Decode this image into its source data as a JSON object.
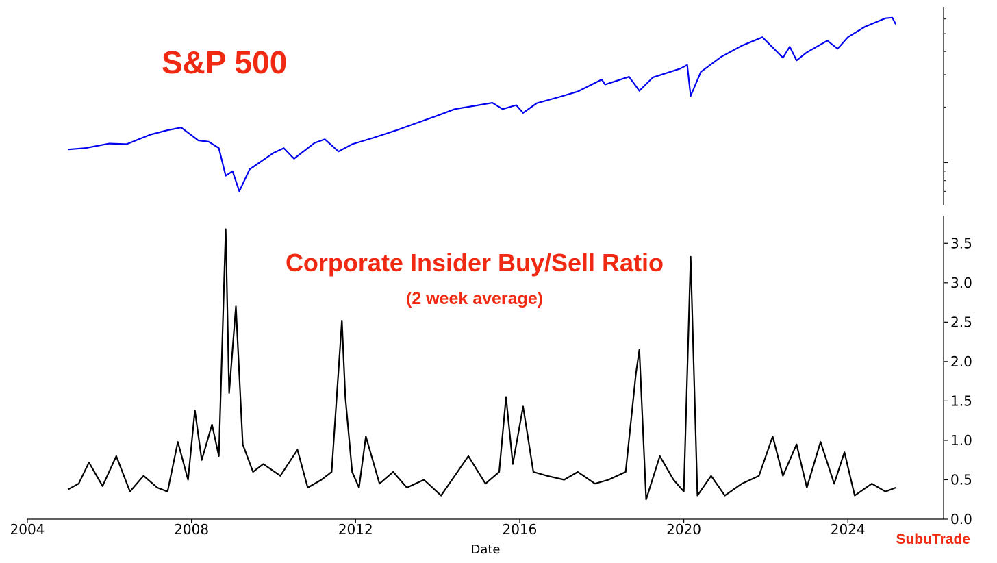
{
  "chart_data": [
    {
      "type": "line",
      "title": "S&P 500",
      "y_scale": "log",
      "y_tick_labels_visible": false,
      "y_axis_side": "right",
      "grid": false,
      "x_range": [
        "2005-01",
        "2025-03"
      ],
      "series": [
        {
          "color": "#0000ee",
          "x": [
            "2005-01",
            "2005-06",
            "2006-01",
            "2006-06",
            "2007-01",
            "2007-06",
            "2007-10",
            "2008-03",
            "2008-06",
            "2008-09",
            "2008-11",
            "2009-01",
            "2009-03",
            "2009-06",
            "2010-01",
            "2010-04",
            "2010-07",
            "2011-01",
            "2011-04",
            "2011-08",
            "2011-12",
            "2012-06",
            "2013-01",
            "2013-06",
            "2014-01",
            "2014-06",
            "2015-01",
            "2015-05",
            "2015-08",
            "2015-12",
            "2016-02",
            "2016-06",
            "2017-01",
            "2017-06",
            "2018-01",
            "2018-02",
            "2018-09",
            "2018-12",
            "2019-04",
            "2019-12",
            "2020-02",
            "2020-03",
            "2020-06",
            "2020-12",
            "2021-06",
            "2021-12",
            "2022-06",
            "2022-08",
            "2022-10",
            "2023-01",
            "2023-07",
            "2023-10",
            "2024-01",
            "2024-06",
            "2024-12",
            "2025-02",
            "2025-03"
          ],
          "values": [
            1180,
            1200,
            1270,
            1260,
            1420,
            1500,
            1550,
            1320,
            1300,
            1200,
            850,
            900,
            700,
            920,
            1130,
            1200,
            1050,
            1280,
            1340,
            1150,
            1260,
            1360,
            1500,
            1620,
            1800,
            1950,
            2050,
            2110,
            1950,
            2050,
            1860,
            2100,
            2280,
            2430,
            2820,
            2650,
            2920,
            2450,
            2900,
            3230,
            3380,
            2300,
            3100,
            3750,
            4300,
            4780,
            3700,
            4250,
            3580,
            3960,
            4580,
            4140,
            4780,
            5450,
            6050,
            6100,
            5620
          ]
        }
      ]
    },
    {
      "type": "line",
      "title": "Corporate Insider Buy/Sell Ratio",
      "subtitle": "(2 week average)",
      "xlabel": "Date",
      "ylabel": "",
      "y_axis_side": "right",
      "ylim": [
        0.0,
        3.85
      ],
      "xlim": [
        "2004-01",
        "2026-05"
      ],
      "x_ticks": [
        "2004",
        "2008",
        "2012",
        "2016",
        "2020",
        "2024"
      ],
      "y_ticks": [
        "0.0",
        "0.5",
        "1.0",
        "1.5",
        "2.0",
        "2.5",
        "3.0",
        "3.5"
      ],
      "grid": false,
      "series": [
        {
          "color": "#000000",
          "x": [
            "2005-01",
            "2005-04",
            "2005-07",
            "2005-11",
            "2006-03",
            "2006-07",
            "2006-11",
            "2007-03",
            "2007-06",
            "2007-09",
            "2007-12",
            "2008-02",
            "2008-04",
            "2008-07",
            "2008-09",
            "2008-11",
            "2008-12",
            "2009-02",
            "2009-04",
            "2009-07",
            "2009-10",
            "2010-03",
            "2010-08",
            "2010-11",
            "2011-03",
            "2011-06",
            "2011-09",
            "2011-10",
            "2011-12",
            "2012-02",
            "2012-04",
            "2012-08",
            "2012-12",
            "2013-04",
            "2013-09",
            "2014-02",
            "2014-06",
            "2014-10",
            "2015-03",
            "2015-07",
            "2015-09",
            "2015-11",
            "2016-02",
            "2016-05",
            "2016-09",
            "2017-02",
            "2017-06",
            "2017-11",
            "2018-03",
            "2018-08",
            "2018-11",
            "2018-12",
            "2019-02",
            "2019-06",
            "2019-10",
            "2020-01",
            "2020-03",
            "2020-05",
            "2020-09",
            "2021-01",
            "2021-06",
            "2021-11",
            "2022-03",
            "2022-06",
            "2022-10",
            "2023-01",
            "2023-05",
            "2023-09",
            "2023-12",
            "2024-03",
            "2024-08",
            "2024-12",
            "2025-03"
          ],
          "values": [
            0.38,
            0.45,
            0.72,
            0.42,
            0.8,
            0.35,
            0.55,
            0.4,
            0.35,
            0.98,
            0.5,
            1.38,
            0.75,
            1.2,
            0.8,
            3.68,
            1.6,
            2.7,
            0.95,
            0.6,
            0.7,
            0.55,
            0.88,
            0.4,
            0.5,
            0.6,
            2.52,
            1.55,
            0.6,
            0.4,
            1.05,
            0.45,
            0.6,
            0.4,
            0.5,
            0.3,
            0.55,
            0.8,
            0.45,
            0.6,
            1.55,
            0.7,
            1.43,
            0.6,
            0.55,
            0.5,
            0.6,
            0.45,
            0.5,
            0.6,
            1.85,
            2.15,
            0.25,
            0.8,
            0.5,
            0.35,
            3.33,
            0.3,
            0.55,
            0.3,
            0.45,
            0.55,
            1.05,
            0.55,
            0.95,
            0.4,
            0.98,
            0.45,
            0.85,
            0.3,
            0.45,
            0.35,
            0.4
          ]
        }
      ]
    }
  ],
  "branding": {
    "text": "SubuTrade"
  }
}
